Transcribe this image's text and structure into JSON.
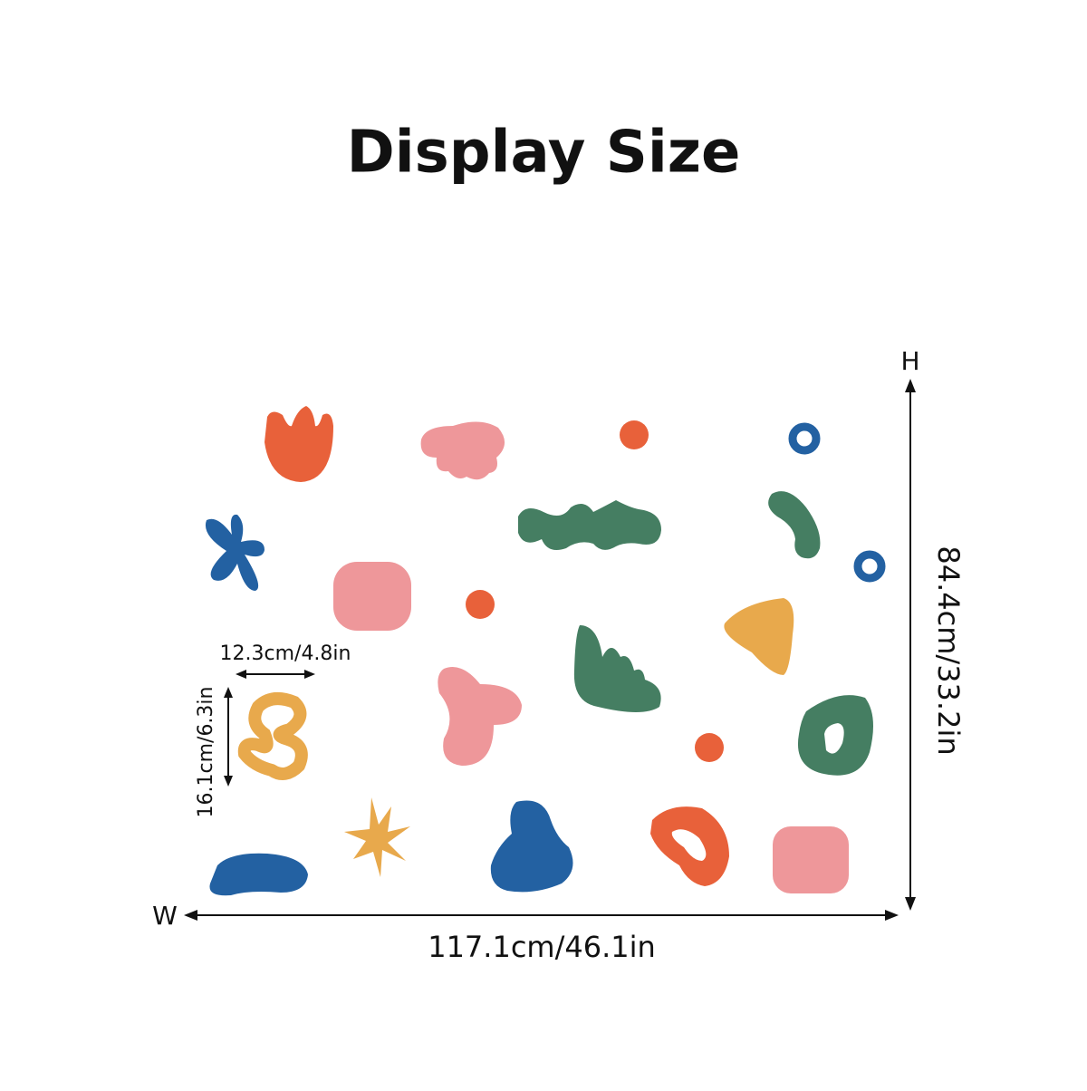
{
  "title": "Display Size",
  "dimensions": {
    "height_marker": "H",
    "width_marker": "W",
    "total_width": "117.1cm/46.1in",
    "total_height": "84.4cm/33.2in",
    "item_width": "12.3cm/4.8in",
    "item_height": "16.1cm/6.3in"
  }
}
